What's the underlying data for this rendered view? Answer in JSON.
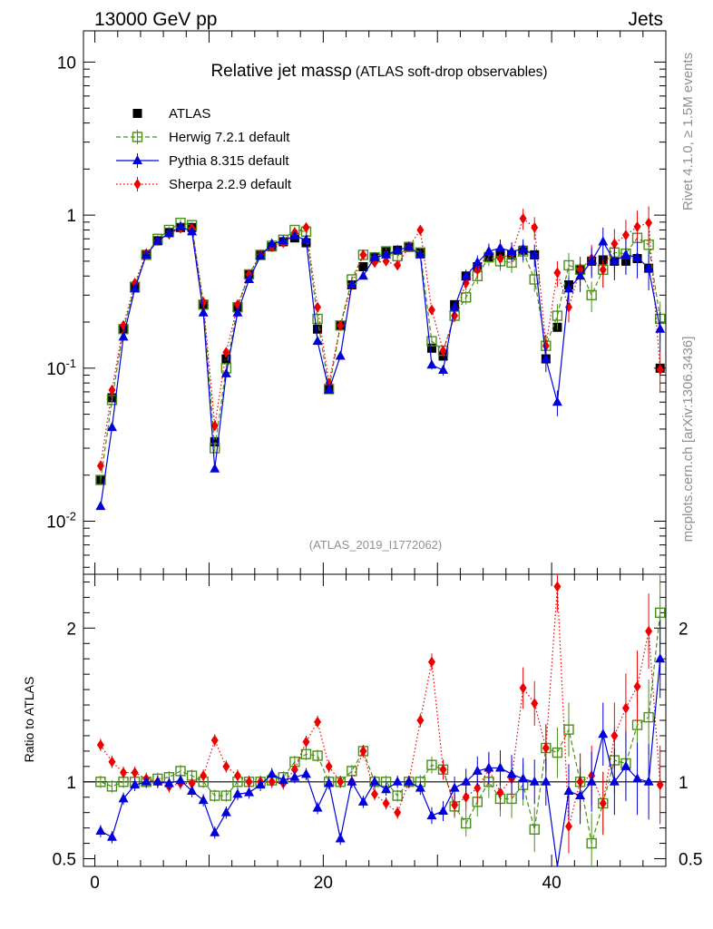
{
  "header": {
    "left": "13000 GeV pp",
    "right": "Jets"
  },
  "side": {
    "rivet": "Rivet 4.1.0, ≥ 1.5M events",
    "site": "mcplots.cern.ch [arXiv:1306.3436]"
  },
  "chart_data": {
    "type": "scatter",
    "title": "Relative jet mass",
    "title_symbol": "ρ",
    "title_suffix": "(ATLAS soft-drop observables)",
    "analysis": "(ATLAS_2019_I1772062)",
    "ratio_ylabel": "Ratio to ATLAS",
    "x_ticks": [
      "0",
      "20",
      "40"
    ],
    "xlim": [
      -1,
      50
    ],
    "main_yscale": "log",
    "main_ylim": [
      0.0045,
      16
    ],
    "main_y_ticks": [
      {
        "mant": "10",
        "exp": "-2",
        "value": 0.01
      },
      {
        "mant": "10",
        "exp": "-1",
        "value": 0.1
      },
      {
        "mant": "1",
        "exp": "",
        "value": 1
      },
      {
        "mant": "10",
        "exp": "",
        "value": 10
      }
    ],
    "ratio_ylim": [
      0.45,
      2.35
    ],
    "ratio_y_ticks": [
      "0.5",
      "1",
      "2"
    ],
    "ratio_reference": 1,
    "legend": [
      {
        "name": "ATLAS",
        "color": "#000000",
        "marker": "square-filled",
        "line": "none"
      },
      {
        "name": "Herwig 7.2.1 default",
        "color": "#4a8f1a",
        "marker": "square-open",
        "line": "dashed"
      },
      {
        "name": "Pythia 8.315 default",
        "color": "#0000dd",
        "marker": "triangle",
        "line": "solid"
      },
      {
        "name": "Sherpa 2.2.9 default",
        "color": "#ee0000",
        "marker": "diamond",
        "line": "dotted"
      }
    ],
    "x": [
      0.5,
      1.5,
      2.5,
      3.5,
      4.5,
      5.5,
      6.5,
      7.5,
      8.5,
      9.5,
      10.5,
      11.5,
      12.5,
      13.5,
      14.5,
      15.5,
      16.5,
      17.5,
      18.5,
      19.5,
      20.5,
      21.5,
      22.5,
      23.5,
      24.5,
      25.5,
      26.5,
      27.5,
      28.5,
      29.5,
      30.5,
      31.5,
      32.5,
      33.5,
      34.5,
      35.5,
      36.5,
      37.5,
      38.5,
      39.5,
      40.5,
      41.5,
      42.5,
      43.5,
      44.5,
      45.5,
      46.5,
      47.5,
      48.5,
      49.5
    ],
    "series": [
      {
        "name": "ATLAS",
        "values": [
          0.0185,
          0.064,
          0.18,
          0.34,
          0.55,
          0.68,
          0.77,
          0.83,
          0.83,
          0.26,
          0.033,
          0.115,
          0.25,
          0.41,
          0.55,
          0.62,
          0.67,
          0.71,
          0.66,
          0.18,
          0.073,
          0.19,
          0.35,
          0.46,
          0.53,
          0.58,
          0.59,
          0.62,
          0.57,
          0.135,
          0.12,
          0.26,
          0.4,
          0.46,
          0.53,
          0.56,
          0.55,
          0.59,
          0.55,
          0.115,
          0.185,
          0.35,
          0.44,
          0.5,
          0.51,
          0.5,
          0.5,
          0.52,
          0.45,
          0.1
        ]
      },
      {
        "name": "Herwig 7.2.1 default",
        "values": [
          0.0186,
          0.062,
          0.18,
          0.34,
          0.55,
          0.7,
          0.8,
          0.89,
          0.86,
          0.26,
          0.03,
          0.1,
          0.25,
          0.41,
          0.55,
          0.63,
          0.69,
          0.8,
          0.78,
          0.21,
          0.073,
          0.19,
          0.38,
          0.55,
          0.53,
          0.58,
          0.54,
          0.62,
          0.57,
          0.15,
          0.13,
          0.22,
          0.29,
          0.4,
          0.53,
          0.5,
          0.49,
          0.58,
          0.38,
          0.14,
          0.22,
          0.47,
          0.44,
          0.3,
          0.44,
          0.57,
          0.56,
          0.71,
          0.64,
          0.21
        ]
      },
      {
        "name": "Pythia 8.315 default",
        "values": [
          0.0125,
          0.041,
          0.16,
          0.33,
          0.55,
          0.68,
          0.76,
          0.84,
          0.78,
          0.23,
          0.022,
          0.092,
          0.23,
          0.38,
          0.54,
          0.65,
          0.68,
          0.73,
          0.69,
          0.15,
          0.072,
          0.12,
          0.35,
          0.4,
          0.53,
          0.55,
          0.59,
          0.62,
          0.55,
          0.105,
          0.097,
          0.25,
          0.4,
          0.49,
          0.58,
          0.61,
          0.58,
          0.6,
          0.55,
          0.115,
          0.06,
          0.33,
          0.4,
          0.5,
          0.67,
          0.5,
          0.55,
          0.53,
          0.45,
          0.18
        ]
      },
      {
        "name": "Sherpa 2.2.9 default",
        "values": [
          0.023,
          0.072,
          0.19,
          0.36,
          0.56,
          0.68,
          0.75,
          0.82,
          0.82,
          0.27,
          0.042,
          0.127,
          0.26,
          0.41,
          0.55,
          0.62,
          0.66,
          0.77,
          0.83,
          0.25,
          0.08,
          0.19,
          0.35,
          0.55,
          0.49,
          0.5,
          0.47,
          0.62,
          0.8,
          0.24,
          0.13,
          0.22,
          0.36,
          0.44,
          0.57,
          0.52,
          0.56,
          0.95,
          0.83,
          0.14,
          0.42,
          0.25,
          0.44,
          0.52,
          0.44,
          0.65,
          0.74,
          0.84,
          0.89,
          0.098
        ]
      }
    ],
    "ratios": [
      {
        "name": "Herwig 7.2.1 default",
        "values": [
          1.0,
          0.97,
          1.0,
          1.0,
          1.0,
          1.02,
          1.03,
          1.07,
          1.04,
          1.0,
          0.91,
          0.91,
          1.0,
          1.0,
          1.0,
          1.01,
          1.03,
          1.13,
          1.18,
          1.17,
          1.0,
          1.0,
          1.07,
          1.2,
          1.0,
          1.0,
          0.91,
          1.0,
          1.0,
          1.11,
          1.08,
          0.84,
          0.73,
          0.87,
          1.0,
          0.89,
          0.89,
          0.98,
          0.69,
          1.22,
          1.19,
          1.34,
          1.0,
          0.6,
          0.86,
          1.14,
          1.12,
          1.37,
          1.42,
          2.1
        ]
      },
      {
        "name": "Pythia 8.315 default",
        "values": [
          0.68,
          0.64,
          0.89,
          0.98,
          1.0,
          1.0,
          0.99,
          1.01,
          0.94,
          0.88,
          0.67,
          0.8,
          0.92,
          0.93,
          0.98,
          1.05,
          1.01,
          1.03,
          1.05,
          0.83,
          0.99,
          0.63,
          1.0,
          0.87,
          1.0,
          0.95,
          1.0,
          1.0,
          0.96,
          0.78,
          0.81,
          0.96,
          1.0,
          1.07,
          1.09,
          1.09,
          1.05,
          1.02,
          1.0,
          1.0,
          0.32,
          0.94,
          0.91,
          1.0,
          1.31,
          1.0,
          1.1,
          1.02,
          1.0,
          1.8
        ]
      },
      {
        "name": "Sherpa 2.2.9 default",
        "values": [
          1.24,
          1.13,
          1.06,
          1.06,
          1.02,
          1.0,
          0.97,
          0.99,
          0.99,
          1.04,
          1.27,
          1.1,
          1.04,
          1.0,
          1.0,
          1.0,
          0.99,
          1.08,
          1.26,
          1.39,
          1.1,
          1.0,
          1.0,
          1.2,
          0.92,
          0.86,
          0.8,
          1.0,
          1.4,
          1.78,
          1.08,
          0.85,
          0.9,
          0.96,
          1.08,
          0.93,
          1.02,
          1.61,
          1.51,
          1.22,
          2.27,
          0.71,
          1.0,
          1.04,
          0.86,
          1.3,
          1.48,
          1.62,
          1.98,
          0.98
        ]
      }
    ]
  }
}
